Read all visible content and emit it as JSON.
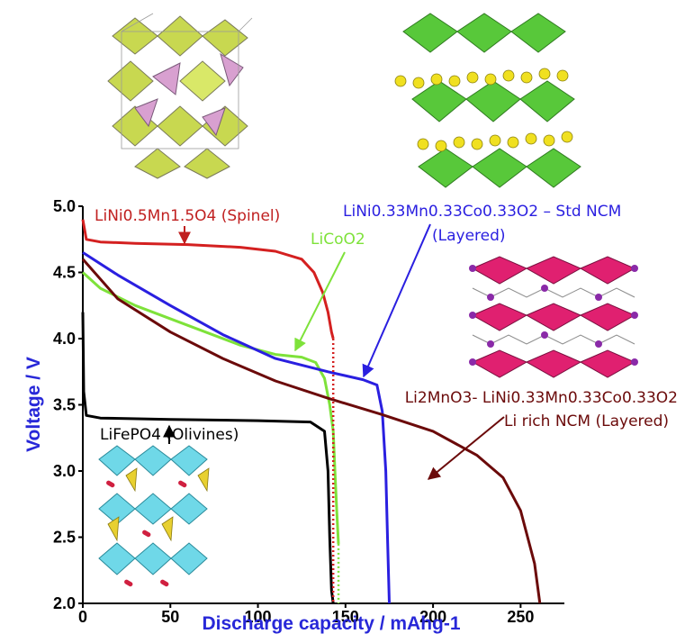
{
  "chart_data": {
    "type": "line",
    "xlabel": "Discharge capacity / mAhg-1",
    "ylabel": "Voltage / V",
    "xlim": [
      0,
      275
    ],
    "ylim": [
      2.0,
      5.0
    ],
    "x_ticks": [
      0,
      50,
      100,
      150,
      200,
      250
    ],
    "y_ticks": [
      "2.0",
      "2.5",
      "3.0",
      "3.5",
      "4.0",
      "4.5",
      "5.0"
    ],
    "grid": false,
    "legend": "none (curves labelled by annotations)",
    "series": [
      {
        "name": "LiNi0.5Mn1.5O4 (Spinel)",
        "color": "#d42020",
        "x": [
          0,
          2,
          10,
          30,
          60,
          90,
          110,
          125,
          132,
          137,
          140,
          142,
          143
        ],
        "y": [
          4.9,
          4.75,
          4.73,
          4.72,
          4.71,
          4.69,
          4.66,
          4.6,
          4.5,
          4.35,
          4.2,
          4.05,
          4.0
        ]
      },
      {
        "name": "LiCoO2",
        "color": "#7ee23a",
        "x": [
          0,
          10,
          30,
          60,
          90,
          110,
          125,
          133,
          138,
          141,
          143,
          144,
          145,
          146
        ],
        "y": [
          4.5,
          4.38,
          4.25,
          4.1,
          3.95,
          3.88,
          3.86,
          3.82,
          3.7,
          3.5,
          3.3,
          3.0,
          2.7,
          2.45
        ]
      },
      {
        "name": "LiNi0.33Mn0.33Co0.33O2 – Std NCM (Layered)",
        "color": "#2a1fe0",
        "x": [
          0,
          20,
          50,
          80,
          110,
          140,
          160,
          168,
          171,
          173,
          174,
          175
        ],
        "y": [
          4.65,
          4.48,
          4.25,
          4.03,
          3.85,
          3.75,
          3.69,
          3.65,
          3.45,
          3.0,
          2.5,
          2.0
        ]
      },
      {
        "name": "Li2MnO3- LiNi0.33Mn0.33Co0.33O2 Li rich NCM (Layered)",
        "color": "#6b0a0a",
        "x": [
          0,
          20,
          50,
          80,
          110,
          140,
          170,
          200,
          225,
          240,
          250,
          258,
          261
        ],
        "y": [
          4.6,
          4.3,
          4.05,
          3.85,
          3.68,
          3.55,
          3.43,
          3.3,
          3.12,
          2.95,
          2.7,
          2.3,
          2.0
        ]
      },
      {
        "name": "LiFePO4 (Olivines)",
        "color": "#000000",
        "x": [
          0,
          0.5,
          2,
          10,
          50,
          100,
          130,
          138,
          140,
          141,
          142,
          143
        ],
        "y": [
          4.2,
          3.6,
          3.42,
          3.4,
          3.39,
          3.38,
          3.37,
          3.3,
          3.0,
          2.5,
          2.1,
          2.0
        ]
      }
    ],
    "dotted_extensions": [
      {
        "color": "#d42020",
        "x": [
          143,
          143
        ],
        "y": [
          4.0,
          2.0
        ]
      },
      {
        "color": "#7ee23a",
        "x": [
          146,
          146
        ],
        "y": [
          2.45,
          2.0
        ]
      }
    ],
    "annotations": [
      {
        "text": "LiNi0.5Mn1.5O4 (Spinel)",
        "color": "#c02020"
      },
      {
        "text": "LiCoO2",
        "color": "#7ee23a"
      },
      {
        "text": "LiNi0.33Mn0.33Co0.33O2 – Std NCM",
        "color": "#2a1fe0"
      },
      {
        "text": "(Layered)",
        "color": "#2a1fe0"
      },
      {
        "text": "Li2MnO3- LiNi0.33Mn0.33Co0.33O2",
        "color": "#6b0a0a"
      },
      {
        "text": "Li rich NCM (Layered)",
        "color": "#6b0a0a"
      },
      {
        "text": "LiFePO4 (Olivines)",
        "color": "#000000"
      }
    ]
  }
}
